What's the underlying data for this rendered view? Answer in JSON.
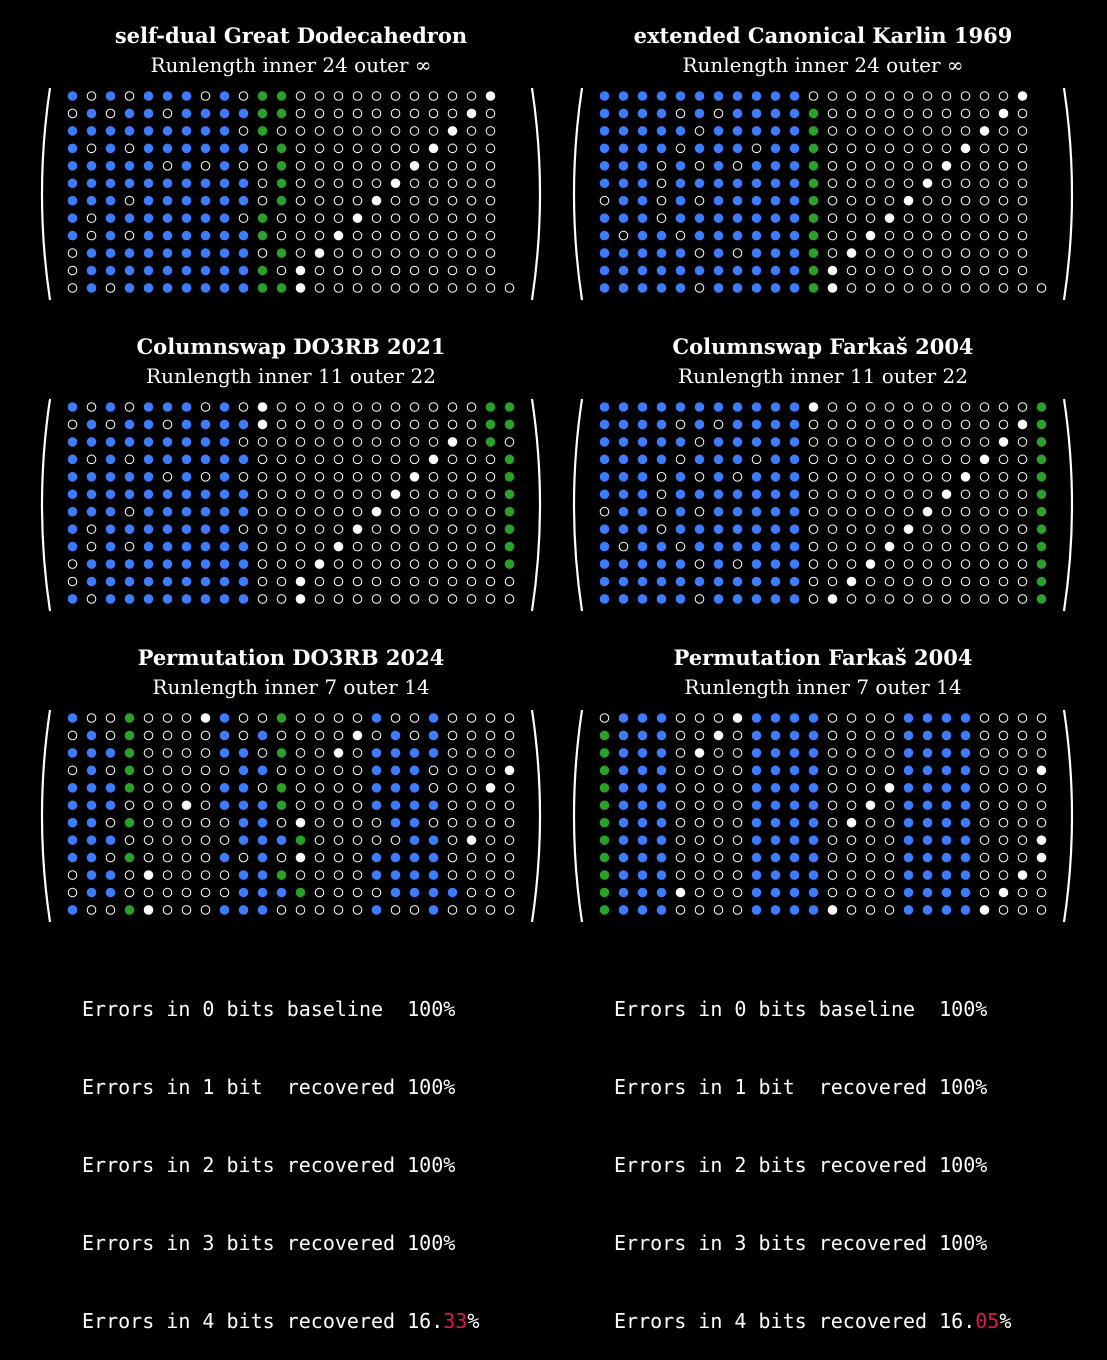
{
  "colors": {
    "blue": "#3d7bff",
    "green": "#2aa12a",
    "white": "#ffffff",
    "red": "#d81b4a"
  },
  "panels": [
    {
      "title": "self-dual Great Dodecahedron",
      "subtitle": "Runlength inner 24 outer ∞",
      "rows": [
        "BoBoBBBoBoGG ooooooooooW",
        "oBoBBoBBBBGG oooooooooWo",
        "BBBBBBBBBoGo ooooooooWoo",
        "BoBoBBBBBBoG oooooooWooo",
        "BBBBBoBoBooG ooooooWoooo",
        "BBBBBBBBBBoG oooooWooooo",
        "BBBoBBBBBBoG ooooWoooooo",
        "BoBBBBBBBoGo oooWooooooo",
        "BoBoBBBBBBGo ooWoooooooo",
        "oBBBBBBBBBoG oWooooooooo",
        "oBBBBBBBBBGo Woooooooooo",
        "oBoBBBBBBBGG Wooooooooooo"
      ]
    },
    {
      "title": "extended Canonical Karlin 1969",
      "subtitle": "Runlength inner 24 outer ∞",
      "rows": [
        "BBBBBBBBBBBo ooooooooooW",
        "BBBBoBoBBBBG oooooooooWo",
        "BBBBBoBBBBBG ooooooooWoo",
        "BBBBoBBBoBBG oooooooWooo",
        "BBBoBoBoBBBG ooooooWoooo",
        "BBBoBBBBBBBG oooooWooooo",
        "oBBoBoBBBBBG ooooWoooooo",
        "BBBoBBBBBBBG oooWooooooo",
        "BoBBoBBBBBBG ooWoooooooo",
        "BBBBBoBoBBBG oWooooooooo",
        "BBBBBBBBBBBG Woooooooooo",
        "BBBBBoBBBBBG Wooooooooooo"
      ]
    },
    {
      "title": "Columnswap DO3RB 2021",
      "subtitle": "Runlength inner 11 outer 22",
      "rows": [
        "BoBoBBBoBoW oooooooooooGG",
        "oBoBBoBBBBWo ooooooooooGG",
        "BBBBBBBBBooo ooooooooWoGo",
        "BoBoBBBBBBoo oooooooWoooG",
        "BBBBBoBoBooo ooooooWooooG",
        "BBBBBBBBBBoo oooooWoooooG",
        "BBBoBBBBBBoo ooooWooooooG",
        "BoBBBBBBBooo oooWoooooooG",
        "BoBoBBBBBBoo ooWooooooooG",
        "oBBBBBBBBBoo oWoooooooooG",
        "oBBBBBBBBBoo Wooooooooooo",
        "BoBBBBBBBBoo WoooooooooooG"
      ]
    },
    {
      "title": "Columnswap Farkaš 2004",
      "subtitle": "Runlength inner 11 outer 22",
      "rows": [
        "BBBBBBBBBBBW oooooooooooG",
        "BBBBoBoBBBBo ooooooooooWG",
        "BBBBBoBBBBBo oooooooooWoG",
        "BBBBoBBBoBBo ooooooooWooG",
        "BBBoBoBoBBBo oooooooWoooG",
        "BBBoBBBBBBBo ooooooWooooG",
        "oBBoBoBBBBBo oooooWoooooG",
        "BBBoBBBBBBBo ooooWooooooG",
        "BoBBoBBBBBBo oooWoooooooG",
        "BBBBBoBoBBBo ooWooooooooG",
        "BBBBBBBBBBBo oWoooooooooG",
        "BBBBBoBBBBBo WooooooooooG"
      ]
    },
    {
      "title": "Permutation DO3RB 2024",
      "subtitle": "Runlength inner 7 outer 14",
      "rows": [
        "BooGoooW BooGoooo BooBoooo",
        "oBoGoooo BoBooooW oBoBoooo",
        "BBBGoooo BBoGooWo BBBBoooo",
        "oBoGoooo oBBooooo BBBooooW",
        "BBBGoooo BBoGoooo BBBoooWo",
        "BBBoooWo BBBGoooo BBBBoooo",
        "BBoGoooo oBBoWooo oBBooooo",
        "BBBoooooo BBBGoooo oBBoWoo",
        "BBoGoooo BoBoWooo BBBBoooo",
        "oBBoWooo oBBGoooo BBBBoooo",
        "oBBoooooo BBBGoooo BBBBoooW",
        "BooGWooo BBBooooo BooBoooo"
      ]
    },
    {
      "title": "Permutation Farkaš 2004",
      "subtitle": "Runlength inner 7 outer 14",
      "rows": [
        "oBBBoooW BBBBoooo BBBBoooo",
        "GBBBooWo BBBBoooo BBBBoooo",
        "GBBBoWoo BBBBoooo BBBBoooo",
        "GBBBoooo BBBBoooo BBBBoooW",
        "GBBBoooo BBBBoooW BBBBoooo",
        "GBBBoooo BBBBooWo BBBBoooo",
        "GBBBoooo BBBBoWoo BBBBoooo",
        "GBBBoooo BBBBoooo BBBBoooW",
        "GBBBoooo BBBBoooo BBBBoooW",
        "GBBBoooo BBBBoooo BBBBooWo",
        "GBBBWooo BBBBoooo BBBBoWoo",
        "GBBBoooo BBBBWooo BBBBWooo"
      ]
    }
  ],
  "stats": [
    {
      "lines": [
        {
          "text": "Errors in 0 bits baseline  100",
          "hl": "",
          "pct": "%"
        },
        {
          "text": "Errors in 1 bit  recovered 100",
          "hl": "",
          "pct": "%"
        },
        {
          "text": "Errors in 2 bits recovered 100",
          "hl": "",
          "pct": "%"
        },
        {
          "text": "Errors in 3 bits recovered 100",
          "hl": "",
          "pct": "%"
        },
        {
          "text": "Errors in 4 bits recovered 16.",
          "hl": "33",
          "pct": "%"
        }
      ]
    },
    {
      "lines": [
        {
          "text": "Errors in 0 bits baseline  100",
          "hl": "",
          "pct": "%"
        },
        {
          "text": "Errors in 1 bit  recovered 100",
          "hl": "",
          "pct": "%"
        },
        {
          "text": "Errors in 2 bits recovered 100",
          "hl": "",
          "pct": "%"
        },
        {
          "text": "Errors in 3 bits recovered 100",
          "hl": "",
          "pct": "%"
        },
        {
          "text": "Errors in 4 bits recovered 16.",
          "hl": "05",
          "pct": "%"
        }
      ]
    }
  ]
}
